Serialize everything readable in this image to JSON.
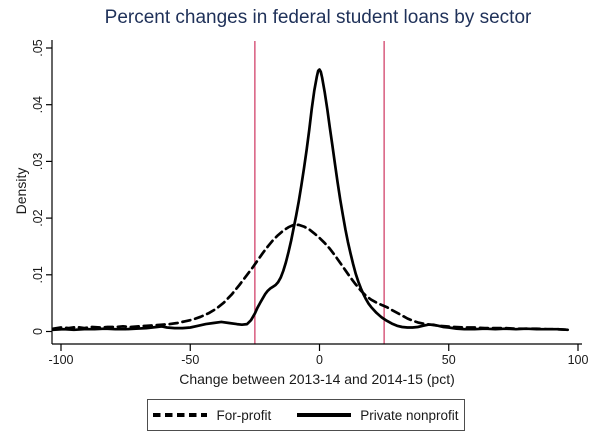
{
  "colors": {
    "title": "#1f3159",
    "axis": "#000000",
    "tick_label": "#1a1a1a",
    "reference_line": "#d1426a",
    "curves": "#000000",
    "background": "#ffffff"
  },
  "chart_data": {
    "type": "line",
    "subtype": "kernel-density",
    "title": "Percent changes in federal student loans by sector",
    "xlabel": "Change between 2013-14 and 2014-15 (pct)",
    "ylabel": "Density",
    "xlim": [
      -105,
      105
    ],
    "ylim": [
      0,
      0.05
    ],
    "x_ticks": [
      -100,
      -50,
      0,
      50,
      100
    ],
    "x_tick_labels": [
      "-100",
      "-50",
      "0",
      "50",
      "100"
    ],
    "y_ticks": [
      0,
      0.01,
      0.02,
      0.03,
      0.04,
      0.05
    ],
    "y_tick_labels": [
      "0",
      ".01",
      ".02",
      ".03",
      ".04",
      ".05"
    ],
    "grid": false,
    "legend_position": "bottom",
    "reference_lines": {
      "x_values": [
        -25,
        25
      ]
    },
    "series": [
      {
        "name": "For-profit",
        "line_style": "dashed",
        "peak": {
          "x": -10,
          "density": 0.0188
        },
        "points": [
          [
            -103,
            0.0005
          ],
          [
            -100,
            0.0007
          ],
          [
            -97,
            0.0006
          ],
          [
            -94,
            0.0008
          ],
          [
            -91,
            0.0006
          ],
          [
            -88,
            0.0008
          ],
          [
            -85,
            0.0007
          ],
          [
            -82,
            0.0008
          ],
          [
            -79,
            0.0008
          ],
          [
            -76,
            0.0009
          ],
          [
            -73,
            0.0008
          ],
          [
            -70,
            0.0009
          ],
          [
            -67,
            0.001
          ],
          [
            -64,
            0.0011
          ],
          [
            -61,
            0.0012
          ],
          [
            -58,
            0.0013
          ],
          [
            -55,
            0.0015
          ],
          [
            -52,
            0.0018
          ],
          [
            -49,
            0.0021
          ],
          [
            -46,
            0.0026
          ],
          [
            -43,
            0.0032
          ],
          [
            -40,
            0.004
          ],
          [
            -37,
            0.0051
          ],
          [
            -34,
            0.0065
          ],
          [
            -31,
            0.0082
          ],
          [
            -28,
            0.01
          ],
          [
            -26,
            0.0112
          ],
          [
            -24,
            0.0125
          ],
          [
            -22,
            0.0138
          ],
          [
            -20,
            0.015
          ],
          [
            -18,
            0.0161
          ],
          [
            -16,
            0.017
          ],
          [
            -14,
            0.0178
          ],
          [
            -12,
            0.0184
          ],
          [
            -10,
            0.0188
          ],
          [
            -8,
            0.0188
          ],
          [
            -6,
            0.0185
          ],
          [
            -4,
            0.018
          ],
          [
            -2,
            0.0173
          ],
          [
            0,
            0.0165
          ],
          [
            2,
            0.0156
          ],
          [
            4,
            0.0146
          ],
          [
            6,
            0.0134
          ],
          [
            8,
            0.0121
          ],
          [
            10,
            0.0108
          ],
          [
            12,
            0.0095
          ],
          [
            14,
            0.0083
          ],
          [
            16,
            0.0072
          ],
          [
            18,
            0.0063
          ],
          [
            20,
            0.0056
          ],
          [
            22,
            0.0051
          ],
          [
            24,
            0.0047
          ],
          [
            26,
            0.0043
          ],
          [
            28,
            0.0038
          ],
          [
            30,
            0.0033
          ],
          [
            32,
            0.0028
          ],
          [
            34,
            0.0023
          ],
          [
            36,
            0.0019
          ],
          [
            38,
            0.0016
          ],
          [
            40,
            0.0014
          ],
          [
            43,
            0.0012
          ],
          [
            46,
            0.001
          ],
          [
            49,
            0.0009
          ],
          [
            52,
            0.0008
          ],
          [
            56,
            0.0007
          ],
          [
            60,
            0.0007
          ],
          [
            64,
            0.0006
          ],
          [
            68,
            0.0006
          ],
          [
            72,
            0.0006
          ],
          [
            76,
            0.0005
          ],
          [
            80,
            0.0005
          ],
          [
            84,
            0.0005
          ],
          [
            88,
            0.0004
          ],
          [
            92,
            0.0004
          ],
          [
            96,
            0.0003
          ]
        ]
      },
      {
        "name": "Private nonprofit",
        "line_style": "solid",
        "peak": {
          "x": 0,
          "density": 0.0462
        },
        "points": [
          [
            -103,
            0.0003
          ],
          [
            -99,
            0.0004
          ],
          [
            -95,
            0.0003
          ],
          [
            -91,
            0.0004
          ],
          [
            -87,
            0.0004
          ],
          [
            -83,
            0.0005
          ],
          [
            -79,
            0.0004
          ],
          [
            -75,
            0.0004
          ],
          [
            -71,
            0.0005
          ],
          [
            -67,
            0.0006
          ],
          [
            -63,
            0.0008
          ],
          [
            -61,
            0.0009
          ],
          [
            -59,
            0.0007
          ],
          [
            -56,
            0.0006
          ],
          [
            -53,
            0.0006
          ],
          [
            -50,
            0.0007
          ],
          [
            -47,
            0.001
          ],
          [
            -44,
            0.0013
          ],
          [
            -41,
            0.0015
          ],
          [
            -38,
            0.0017
          ],
          [
            -35,
            0.0015
          ],
          [
            -32,
            0.0013
          ],
          [
            -30,
            0.0012
          ],
          [
            -28,
            0.0013
          ],
          [
            -26.5,
            0.002
          ],
          [
            -25,
            0.0032
          ],
          [
            -24,
            0.0042
          ],
          [
            -23,
            0.005
          ],
          [
            -22,
            0.0058
          ],
          [
            -21,
            0.0066
          ],
          [
            -20,
            0.0072
          ],
          [
            -19,
            0.0076
          ],
          [
            -18,
            0.0079
          ],
          [
            -17,
            0.0082
          ],
          [
            -16,
            0.0087
          ],
          [
            -15,
            0.0095
          ],
          [
            -14,
            0.0107
          ],
          [
            -13,
            0.0122
          ],
          [
            -12,
            0.014
          ],
          [
            -11,
            0.016
          ],
          [
            -10,
            0.0182
          ],
          [
            -9,
            0.0205
          ],
          [
            -8,
            0.023
          ],
          [
            -7,
            0.0258
          ],
          [
            -6,
            0.0288
          ],
          [
            -5,
            0.032
          ],
          [
            -4,
            0.0355
          ],
          [
            -3,
            0.0392
          ],
          [
            -2,
            0.0425
          ],
          [
            -1,
            0.045
          ],
          [
            -0.5,
            0.046
          ],
          [
            0,
            0.0462
          ],
          [
            0.5,
            0.0458
          ],
          [
            1,
            0.0448
          ],
          [
            2,
            0.0422
          ],
          [
            3,
            0.0392
          ],
          [
            4,
            0.036
          ],
          [
            5,
            0.0328
          ],
          [
            6,
            0.0295
          ],
          [
            7,
            0.0263
          ],
          [
            8,
            0.0233
          ],
          [
            9,
            0.0206
          ],
          [
            10,
            0.018
          ],
          [
            11,
            0.0158
          ],
          [
            12,
            0.0138
          ],
          [
            13,
            0.0119
          ],
          [
            14,
            0.0102
          ],
          [
            15,
            0.0088
          ],
          [
            16,
            0.0076
          ],
          [
            17,
            0.0066
          ],
          [
            18,
            0.0057
          ],
          [
            19,
            0.0049
          ],
          [
            20,
            0.0043
          ],
          [
            22,
            0.0033
          ],
          [
            24,
            0.0025
          ],
          [
            26,
            0.0019
          ],
          [
            28,
            0.0014
          ],
          [
            30,
            0.001
          ],
          [
            32,
            0.0008
          ],
          [
            34,
            0.0007
          ],
          [
            36,
            0.0007
          ],
          [
            38,
            0.0008
          ],
          [
            40,
            0.001
          ],
          [
            42,
            0.0012
          ],
          [
            44,
            0.0012
          ],
          [
            46,
            0.001
          ],
          [
            48,
            0.0008
          ],
          [
            50,
            0.0007
          ],
          [
            53,
            0.0005
          ],
          [
            56,
            0.0004
          ],
          [
            60,
            0.0004
          ],
          [
            64,
            0.0005
          ],
          [
            68,
            0.0004
          ],
          [
            72,
            0.0005
          ],
          [
            76,
            0.0004
          ],
          [
            80,
            0.0005
          ],
          [
            84,
            0.0004
          ],
          [
            88,
            0.0004
          ],
          [
            92,
            0.0004
          ],
          [
            96,
            0.0003
          ]
        ]
      }
    ]
  }
}
